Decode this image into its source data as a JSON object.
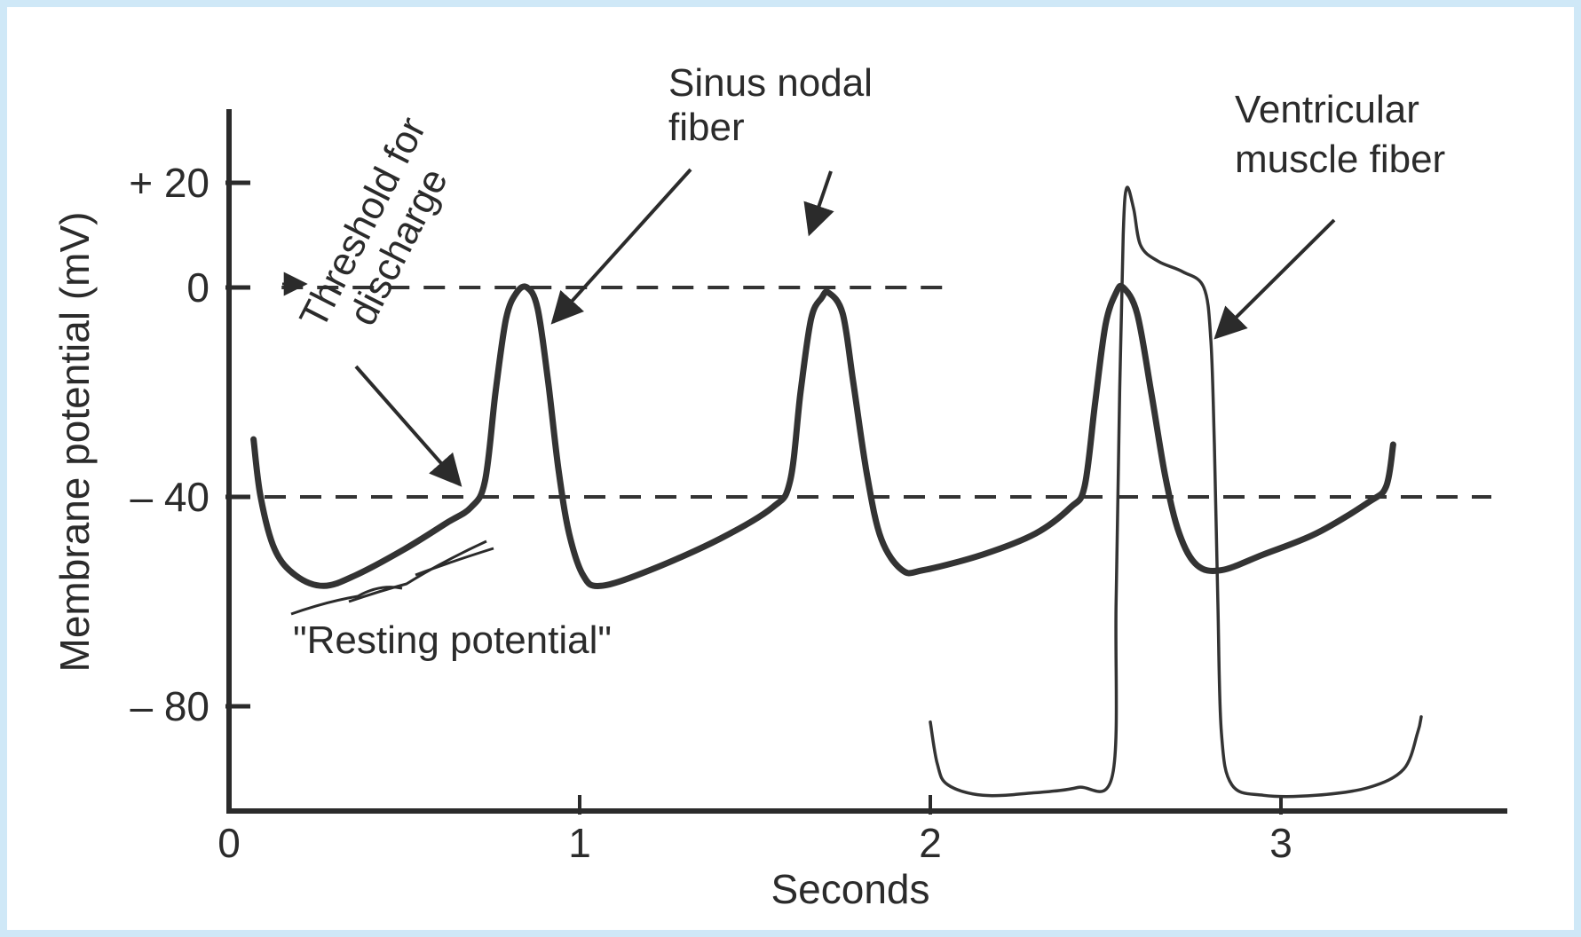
{
  "chart_data": {
    "type": "line",
    "title": "",
    "xlabel": "Seconds",
    "ylabel": "Membrane potential (mV)",
    "xlim": [
      0,
      3.7
    ],
    "ylim": [
      -100,
      35
    ],
    "x_ticks": [
      {
        "value": 0,
        "label": "0"
      },
      {
        "value": 1,
        "label": "1"
      },
      {
        "value": 2,
        "label": "2"
      },
      {
        "value": 3,
        "label": "3"
      }
    ],
    "y_ticks": [
      {
        "value": 20,
        "label": "+ 20"
      },
      {
        "value": 0,
        "label": "0"
      },
      {
        "value": -40,
        "label": "– 40"
      },
      {
        "value": -80,
        "label": "– 80"
      }
    ],
    "reference_lines": [
      {
        "y": 0,
        "x_from": 0.15,
        "x_to": 2.05,
        "style": "dashed"
      },
      {
        "y": -40,
        "x_from": 0,
        "x_to": 3.6,
        "style": "dashed"
      }
    ],
    "series": [
      {
        "name": "Sinus nodal fiber",
        "color": "#333333",
        "points": [
          [
            0.07,
            -29
          ],
          [
            0.09,
            -40
          ],
          [
            0.13,
            -50
          ],
          [
            0.19,
            -55
          ],
          [
            0.27,
            -57
          ],
          [
            0.36,
            -55
          ],
          [
            0.5,
            -50
          ],
          [
            0.62,
            -45
          ],
          [
            0.69,
            -42
          ],
          [
            0.73,
            -37
          ],
          [
            0.76,
            -20
          ],
          [
            0.79,
            -6
          ],
          [
            0.82,
            -1
          ],
          [
            0.85,
            0
          ],
          [
            0.88,
            -4
          ],
          [
            0.91,
            -18
          ],
          [
            0.94,
            -35
          ],
          [
            0.97,
            -47
          ],
          [
            1.01,
            -55
          ],
          [
            1.06,
            -57
          ],
          [
            1.2,
            -54
          ],
          [
            1.4,
            -48
          ],
          [
            1.55,
            -42
          ],
          [
            1.6,
            -37
          ],
          [
            1.63,
            -20
          ],
          [
            1.66,
            -6
          ],
          [
            1.69,
            -2
          ],
          [
            1.71,
            -1
          ],
          [
            1.75,
            -5
          ],
          [
            1.78,
            -18
          ],
          [
            1.82,
            -36
          ],
          [
            1.86,
            -48
          ],
          [
            1.92,
            -54
          ],
          [
            1.98,
            -54
          ],
          [
            2.15,
            -51
          ],
          [
            2.3,
            -47
          ],
          [
            2.4,
            -42
          ],
          [
            2.44,
            -38
          ],
          [
            2.47,
            -22
          ],
          [
            2.5,
            -7
          ],
          [
            2.53,
            -1
          ],
          [
            2.55,
            0
          ],
          [
            2.59,
            -5
          ],
          [
            2.63,
            -20
          ],
          [
            2.67,
            -36
          ],
          [
            2.71,
            -47
          ],
          [
            2.76,
            -53
          ],
          [
            2.83,
            -54
          ],
          [
            2.95,
            -51
          ],
          [
            3.1,
            -47
          ],
          [
            3.25,
            -41
          ],
          [
            3.3,
            -38
          ],
          [
            3.32,
            -30
          ]
        ]
      },
      {
        "name": "Ventricular muscle fiber",
        "color": "#333333",
        "points": [
          [
            2.0,
            -83
          ],
          [
            2.02,
            -91
          ],
          [
            2.05,
            -95
          ],
          [
            2.15,
            -97
          ],
          [
            2.3,
            -96.5
          ],
          [
            2.42,
            -95.5
          ],
          [
            2.52,
            -93
          ],
          [
            2.53,
            -60
          ],
          [
            2.54,
            -20
          ],
          [
            2.55,
            10
          ],
          [
            2.56,
            19
          ],
          [
            2.58,
            15
          ],
          [
            2.6,
            8
          ],
          [
            2.65,
            5
          ],
          [
            2.72,
            3
          ],
          [
            2.78,
            0
          ],
          [
            2.8,
            -10
          ],
          [
            2.81,
            -30
          ],
          [
            2.82,
            -60
          ],
          [
            2.83,
            -85
          ],
          [
            2.86,
            -95
          ],
          [
            2.95,
            -97
          ],
          [
            3.1,
            -97
          ],
          [
            3.25,
            -95.5
          ],
          [
            3.35,
            -92
          ],
          [
            3.39,
            -85
          ],
          [
            3.4,
            -82
          ]
        ]
      }
    ],
    "annotations": {
      "sinus_label": [
        "Sinus nodal",
        "fiber"
      ],
      "ventricular_label": [
        "Ventricular",
        "muscle fiber"
      ],
      "threshold_label": [
        "Threshold for",
        "discharge"
      ],
      "resting_label": "\"Resting potential\""
    }
  }
}
